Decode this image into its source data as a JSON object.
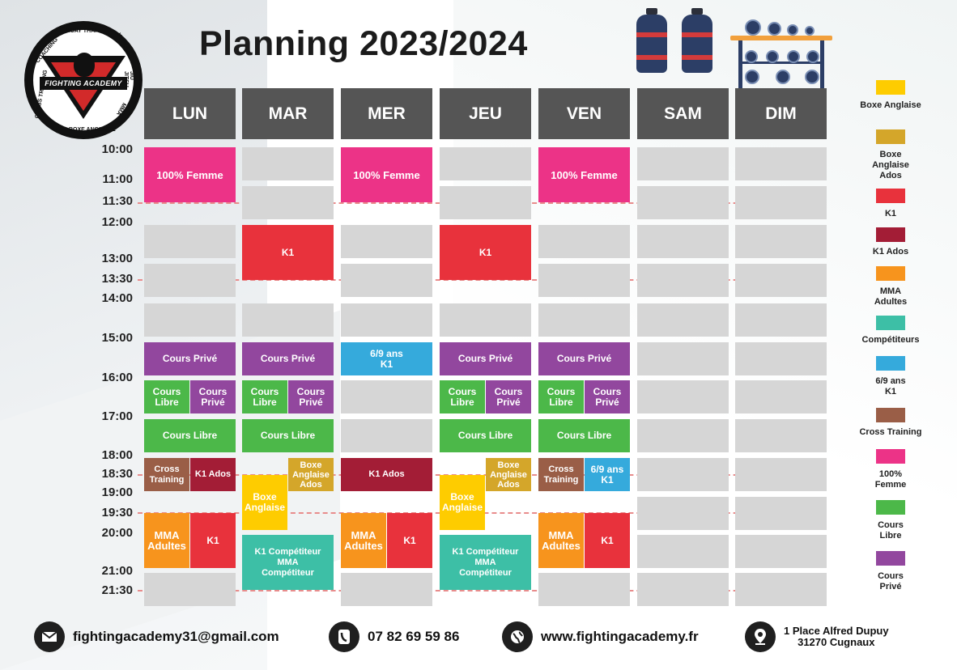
{
  "header": {
    "title": "Planning 2023/2024",
    "logo_text": "FIGHTING ACADEMY",
    "logo_ring_text": [
      "MUAY THAI",
      "K1 RULES",
      "JIU JITSU",
      "MMA",
      "BOXE ANGLAISE",
      "CROSS TRAINING",
      "COACHING"
    ]
  },
  "days": [
    "LUN",
    "MAR",
    "MER",
    "JEU",
    "VEN",
    "SAM",
    "DIM"
  ],
  "times": [
    "10:00",
    "11:00",
    "11:30",
    "12:00",
    "13:00",
    "13:30",
    "14:00",
    "15:00",
    "16:00",
    "17:00",
    "18:00",
    "18:30",
    "19:00",
    "19:30",
    "20:00",
    "21:00",
    "21:30"
  ],
  "colors": {
    "header_gray": "#555555",
    "empty_slot": "#d6d6d6",
    "boxe_anglaise": "#fecc00",
    "boxe_anglaise_ados": "#d4a62a",
    "k1": "#e8323c",
    "k1_ados": "#a31d36",
    "mma_adultes": "#f7941d",
    "competiteurs": "#3dbfa6",
    "k1_6_9_ans": "#35aadc",
    "cross_training": "#9a5e47",
    "femme_100": "#ec3387",
    "cours_libre": "#4cb849",
    "cours_prive": "#92479e"
  },
  "classes": {
    "femme": "100% Femme",
    "k1": "K1",
    "cours_prive": "Cours Privé",
    "cours_libre": "Cours Libre",
    "k1_6_9": "6/9 ans K1",
    "cross_training": "Cross Training",
    "k1_ados": "K1 Ados",
    "boxe_anglaise_ados": "Boxe Anglaise Ados",
    "boxe_anglaise": "Boxe Anglaise",
    "mma_adultes": "MMA Adultes",
    "k1_mma_competiteur": "K1 Compétiteur MMA Compétiteur"
  },
  "legend": [
    {
      "label": "Boxe Anglaise",
      "color": "#fecc00"
    },
    {
      "label": "Boxe Anglaise Ados",
      "color": "#d4a62a"
    },
    {
      "label": "K1",
      "color": "#e8323c"
    },
    {
      "label": "K1 Ados",
      "color": "#a31d36"
    },
    {
      "label": "MMA Adultes",
      "color": "#f7941d"
    },
    {
      "label": "Compétiteurs",
      "color": "#3dbfa6"
    },
    {
      "label": "6/9 ans K1",
      "color": "#35aadc"
    },
    {
      "label": "Cross Training",
      "color": "#9a5e47"
    },
    {
      "label": "100% Femme",
      "color": "#ec3387"
    },
    {
      "label": "Cours Libre",
      "color": "#4cb849"
    },
    {
      "label": "Cours Privé",
      "color": "#92479e"
    }
  ],
  "footer": {
    "email": "fightingacademy31@gmail.com",
    "phone": "07 82 69 59 86",
    "website": "www.fightingacademy.fr",
    "address_line1": "1 Place Alfred Dupuy",
    "address_line2": "31270 Cugnaux",
    "email_icon": "envelope-icon",
    "phone_icon": "phone-icon",
    "website_icon": "globe-icon",
    "address_icon": "map-pin-icon"
  }
}
